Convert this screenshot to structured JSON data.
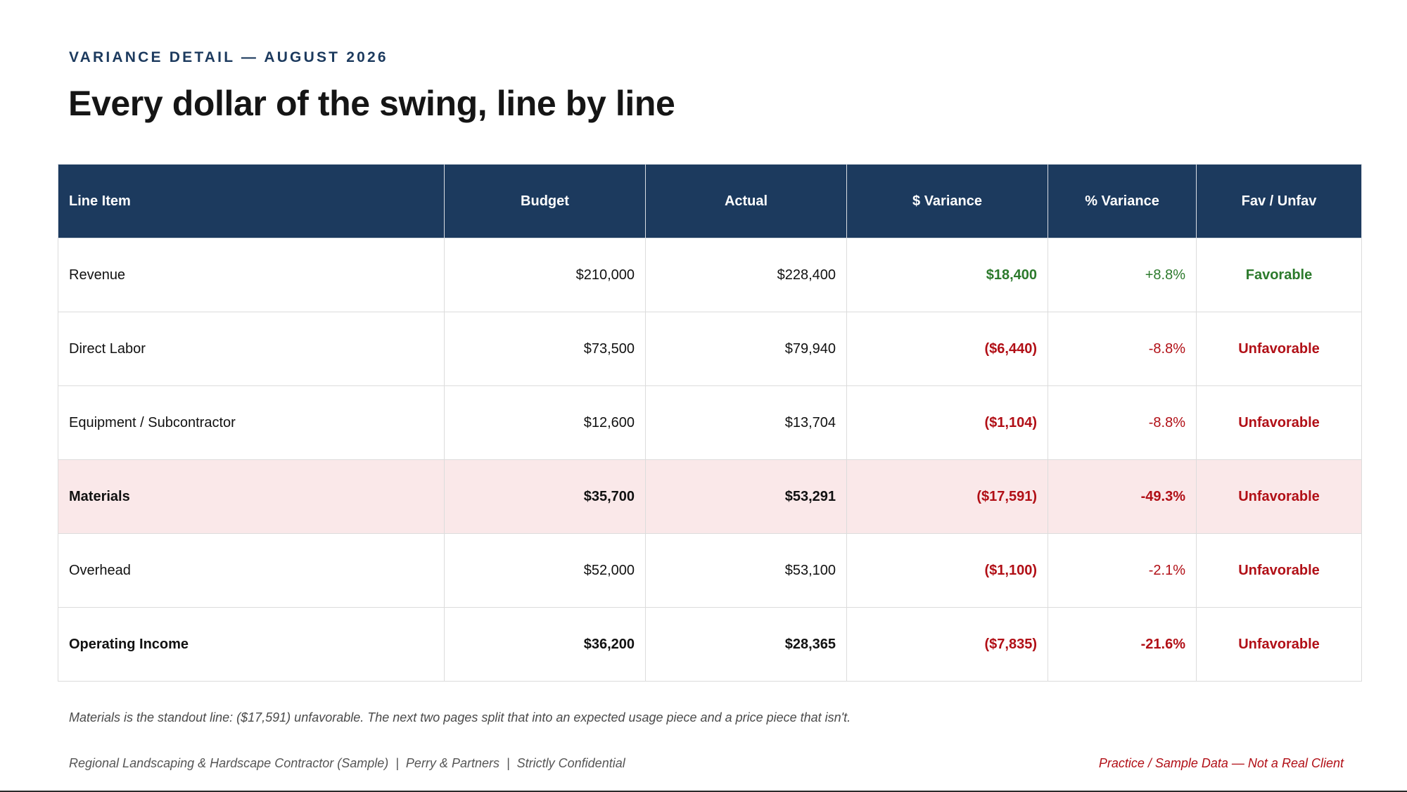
{
  "header": {
    "eyebrow": "VARIANCE DETAIL — AUGUST 2026",
    "title": "Every dollar of the swing, line by line"
  },
  "table": {
    "columns": [
      "Line Item",
      "Budget",
      "Actual",
      "$ Variance",
      "% Variance",
      "Fav / Unfav"
    ],
    "rows": [
      {
        "item": "Revenue",
        "budget": "$210,000",
        "actual": "$228,400",
        "dollar_variance": "$18,400",
        "pct_variance": "+8.8%",
        "fav": "Favorable"
      },
      {
        "item": "Direct Labor",
        "budget": "$73,500",
        "actual": "$79,940",
        "dollar_variance": "($6,440)",
        "pct_variance": "-8.8%",
        "fav": "Unfavorable"
      },
      {
        "item": "Equipment / Subcontractor",
        "budget": "$12,600",
        "actual": "$13,704",
        "dollar_variance": "($1,104)",
        "pct_variance": "-8.8%",
        "fav": "Unfavorable"
      },
      {
        "item": "Materials",
        "budget": "$35,700",
        "actual": "$53,291",
        "dollar_variance": "($17,591)",
        "pct_variance": "-49.3%",
        "fav": "Unfavorable"
      },
      {
        "item": "Overhead",
        "budget": "$52,000",
        "actual": "$53,100",
        "dollar_variance": "($1,100)",
        "pct_variance": "-2.1%",
        "fav": "Unfavorable"
      },
      {
        "item": "Operating Income",
        "budget": "$36,200",
        "actual": "$28,365",
        "dollar_variance": "($7,835)",
        "pct_variance": "-21.6%",
        "fav": "Unfavorable"
      }
    ]
  },
  "note": "Materials is the standout line: ($17,591) unfavorable. The next two pages split that into an expected usage piece and a price piece that isn't.",
  "footer": {
    "left": "Regional Landscaping & Hardscape Contractor (Sample)  |  Perry & Partners  |  Strictly Confidential",
    "right": "Practice / Sample Data — Not a Real Client"
  },
  "colors": {
    "header_navy": "#1c3a5e",
    "favorable_green": "#2c7a2c",
    "unfavorable_red": "#b10f16",
    "highlight_row": "#fae8e9"
  }
}
